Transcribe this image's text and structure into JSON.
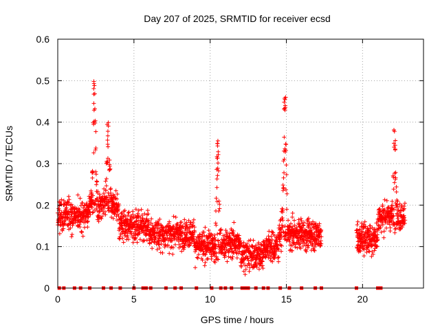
{
  "chart_data": {
    "type": "scatter",
    "title": "Day 207 of 2025, SRMTID for receiver ecsd",
    "xlabel": "GPS time / hours",
    "ylabel": "SRMTID / TECUs",
    "xlim": [
      0,
      24
    ],
    "ylim": [
      0,
      0.6
    ],
    "xticks": [
      0,
      5,
      10,
      15,
      20
    ],
    "yticks": [
      0,
      0.1,
      0.2,
      0.3,
      0.4,
      0.5,
      0.6
    ],
    "xtick_labels": [
      "0",
      "5",
      "10",
      "15",
      "20"
    ],
    "ytick_labels": [
      "0",
      "0.1",
      "0.2",
      "0.3",
      "0.4",
      "0.5",
      "0.6"
    ],
    "grid": true,
    "marker": "plus",
    "color": "#ff0000",
    "data_hours_ranges": [
      [
        0.0,
        17.3
      ],
      [
        19.6,
        22.8
      ]
    ],
    "peaks": [
      {
        "x": 2.4,
        "y": 0.5
      },
      {
        "x": 3.3,
        "y": 0.4
      },
      {
        "x": 10.5,
        "y": 0.36
      },
      {
        "x": 14.9,
        "y": 0.47
      },
      {
        "x": 22.1,
        "y": 0.39
      }
    ],
    "baseline_markers_x": [
      0.1,
      0.4,
      1.1,
      1.5,
      2.1,
      3.0,
      3.5,
      4.1,
      5.0,
      5.6,
      5.8,
      6.1,
      7.1,
      7.7,
      8.1,
      9.1,
      10.1,
      10.7,
      11.0,
      11.4,
      12.1,
      12.3,
      12.5,
      13.0,
      13.5,
      13.8,
      14.6,
      15.2,
      16.0,
      16.9,
      17.3,
      19.6,
      21.0,
      21.2
    ]
  }
}
